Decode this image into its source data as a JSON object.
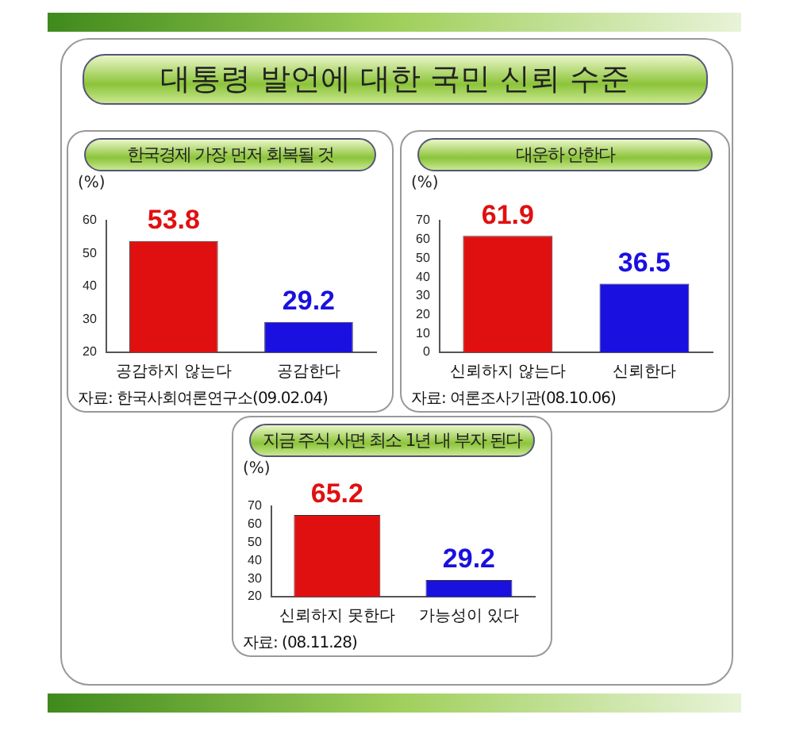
{
  "chart_data": [
    {
      "type": "other",
      "title": "대통령 발언에 대한 국민 신뢰 수준"
    },
    {
      "type": "bar",
      "title": "한국경제 가장 먼저 회복될 것",
      "ylabel": "(%)",
      "categories": [
        "공감하지 않는다",
        "공감한다"
      ],
      "values": [
        53.8,
        29.2
      ],
      "colors": [
        "#e01010",
        "#1a10e0"
      ],
      "ylim": [
        20,
        60
      ],
      "yticks": [
        20,
        30,
        40,
        50,
        60
      ],
      "data_labels": true,
      "grid": false,
      "legend": false,
      "annotations": [
        "자료: 한국사회여론연구소(09.02.04)"
      ]
    },
    {
      "type": "bar",
      "title": "대운하 안한다",
      "ylabel": "(%)",
      "categories": [
        "신뢰하지 않는다",
        "신뢰한다"
      ],
      "values": [
        61.9,
        36.5
      ],
      "colors": [
        "#e01010",
        "#1a10e0"
      ],
      "ylim": [
        0,
        70
      ],
      "yticks": [
        0,
        10,
        20,
        30,
        40,
        50,
        60,
        70
      ],
      "data_labels": true,
      "grid": false,
      "legend": false,
      "annotations": [
        "자료: 여론조사기관(08.10.06)"
      ]
    },
    {
      "type": "bar",
      "title": "지금 주식 사면 최소 1년 내 부자 된다",
      "ylabel": "(%)",
      "categories": [
        "신뢰하지 못한다",
        "가능성이 있다"
      ],
      "values": [
        65.2,
        29.2
      ],
      "colors": [
        "#e01010",
        "#1a10e0"
      ],
      "ylim": [
        20,
        70
      ],
      "yticks": [
        20,
        30,
        40,
        50,
        60,
        70
      ],
      "data_labels": true,
      "grid": false,
      "legend": false,
      "annotations": [
        "자료: (08.11.28)"
      ]
    }
  ]
}
